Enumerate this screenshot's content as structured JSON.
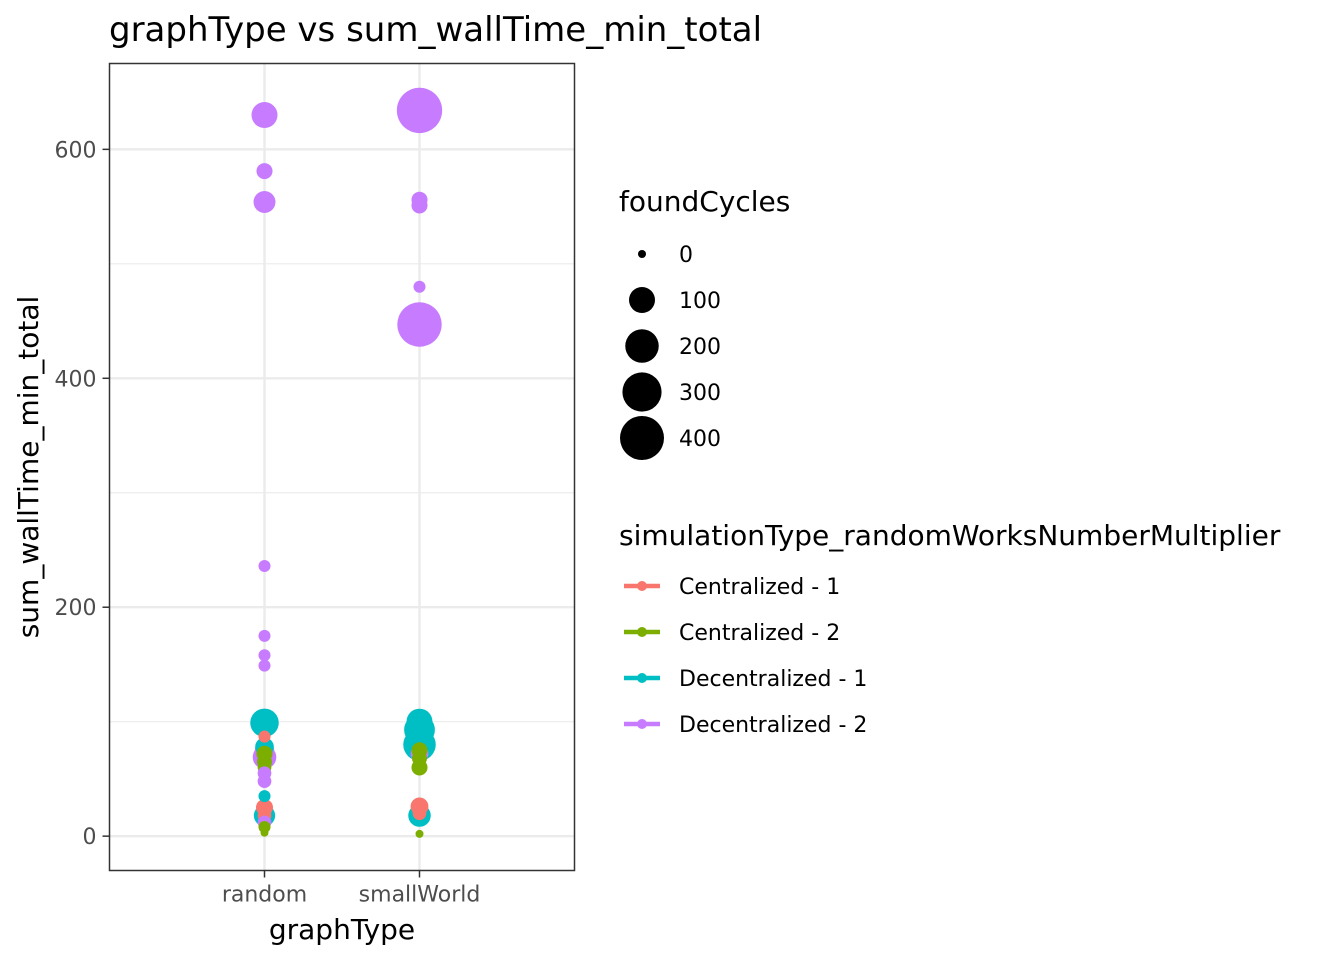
{
  "chart_data": {
    "type": "scatter",
    "title": "graphType  vs  sum_wallTime_min_total",
    "xlabel": "graphType",
    "ylabel": "sum_wallTime_min_total",
    "categories": [
      "random",
      "smallWorld"
    ],
    "ylim": [
      -30,
      675
    ],
    "yticks": [
      0,
      200,
      400,
      600
    ],
    "grid": true,
    "size_legend": {
      "title": "foundCycles",
      "values": [
        0,
        100,
        200,
        300,
        400
      ],
      "labels": [
        "0",
        "100",
        "200",
        "300",
        "400"
      ]
    },
    "color_legend": {
      "title": "simulationType_randomWorksNumberMultiplier",
      "placement": "right"
    },
    "series": [
      {
        "name": "Centralized - 1",
        "color": "#F8766D",
        "points": [
          {
            "x": "random",
            "y": 87,
            "size": 5
          },
          {
            "x": "random",
            "y": 25,
            "size": 25
          },
          {
            "x": "random",
            "y": 18,
            "size": 10
          },
          {
            "x": "smallWorld",
            "y": 26,
            "size": 30
          },
          {
            "x": "smallWorld",
            "y": 20,
            "size": 10
          }
        ]
      },
      {
        "name": "Centralized - 2",
        "color": "#7CAE00",
        "points": [
          {
            "x": "random",
            "y": 72,
            "size": 20
          },
          {
            "x": "random",
            "y": 65,
            "size": 15
          },
          {
            "x": "random",
            "y": 60,
            "size": 10
          },
          {
            "x": "random",
            "y": 8,
            "size": 5
          },
          {
            "x": "random",
            "y": 3,
            "size": 0
          },
          {
            "x": "smallWorld",
            "y": 75,
            "size": 20
          },
          {
            "x": "smallWorld",
            "y": 68,
            "size": 15
          },
          {
            "x": "smallWorld",
            "y": 60,
            "size": 20
          },
          {
            "x": "smallWorld",
            "y": 2,
            "size": 0
          }
        ]
      },
      {
        "name": "Decentralized - 1",
        "color": "#00BFC4",
        "points": [
          {
            "x": "random",
            "y": 99,
            "size": 130
          },
          {
            "x": "random",
            "y": 78,
            "size": 35
          },
          {
            "x": "random",
            "y": 35,
            "size": 5
          },
          {
            "x": "random",
            "y": 18,
            "size": 55
          },
          {
            "x": "smallWorld",
            "y": 100,
            "size": 100
          },
          {
            "x": "smallWorld",
            "y": 93,
            "size": 160
          },
          {
            "x": "smallWorld",
            "y": 80,
            "size": 185
          },
          {
            "x": "smallWorld",
            "y": 18,
            "size": 65
          }
        ]
      },
      {
        "name": "Decentralized - 2",
        "color": "#C77CFF",
        "points": [
          {
            "x": "random",
            "y": 630,
            "size": 100
          },
          {
            "x": "random",
            "y": 581,
            "size": 20
          },
          {
            "x": "random",
            "y": 554,
            "size": 60
          },
          {
            "x": "random",
            "y": 236,
            "size": 5
          },
          {
            "x": "random",
            "y": 175,
            "size": 5
          },
          {
            "x": "random",
            "y": 158,
            "size": 5
          },
          {
            "x": "random",
            "y": 149,
            "size": 5
          },
          {
            "x": "random",
            "y": 75,
            "size": 40
          },
          {
            "x": "random",
            "y": 69,
            "size": 75
          },
          {
            "x": "random",
            "y": 55,
            "size": 10
          },
          {
            "x": "random",
            "y": 48,
            "size": 10
          },
          {
            "x": "random",
            "y": 12,
            "size": 10
          },
          {
            "x": "smallWorld",
            "y": 634,
            "size": 430
          },
          {
            "x": "smallWorld",
            "y": 556,
            "size": 20
          },
          {
            "x": "smallWorld",
            "y": 551,
            "size": 20
          },
          {
            "x": "smallWorld",
            "y": 480,
            "size": 5
          },
          {
            "x": "smallWorld",
            "y": 447,
            "size": 410
          },
          {
            "x": "smallWorld",
            "y": 72,
            "size": 30
          }
        ]
      }
    ]
  }
}
